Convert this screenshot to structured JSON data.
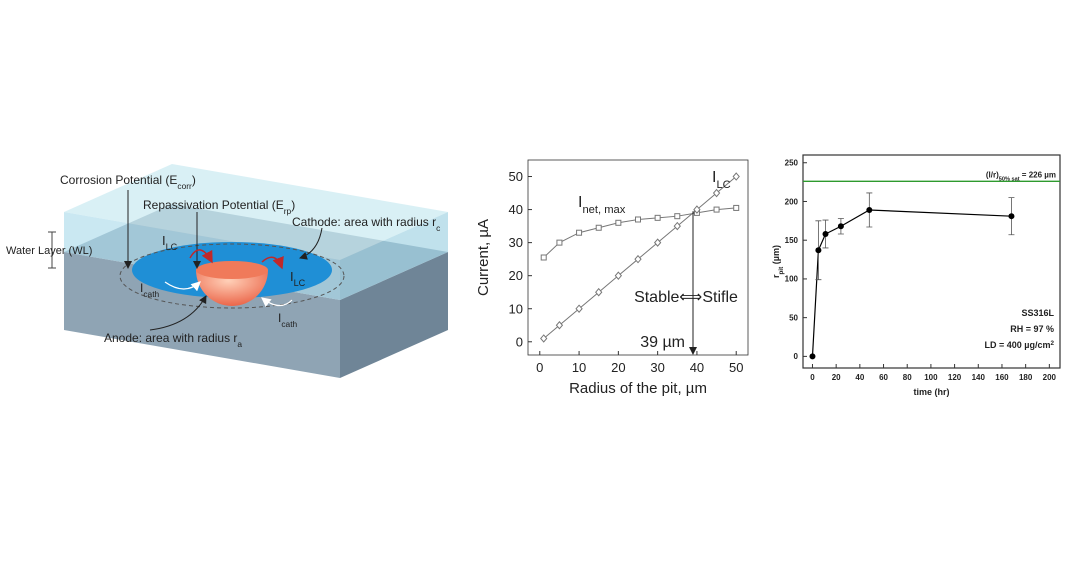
{
  "diagram": {
    "corrosion_potential": {
      "text": "Corrosion Potential (E",
      "sub": "corr",
      "end": ")"
    },
    "repassivation_potential": {
      "text": "Repassivation Potential (E",
      "sub": "rp",
      "end": ")"
    },
    "cathode": {
      "text": "Cathode: area with radius r",
      "sub": "c"
    },
    "water_layer": "Water Layer (WL)",
    "anode": {
      "text": "Anode: area with radius r",
      "sub": "a"
    },
    "current_lc": {
      "text": "I",
      "sub": "LC"
    },
    "current_cath": {
      "text": "I",
      "sub": "cath"
    }
  },
  "chart_data": [
    {
      "type": "line",
      "x_label": "Radius of the pit, µm",
      "y_label": "Current, µA",
      "x": [
        1,
        5,
        10,
        15,
        20,
        25,
        30,
        35,
        40,
        45,
        50
      ],
      "series": [
        {
          "name": "I",
          "name_sub": "net, max",
          "color": "#777777",
          "marker": "square",
          "values": [
            25.5,
            30,
            33,
            34.5,
            36,
            37,
            37.5,
            38,
            39,
            40,
            40.5
          ]
        },
        {
          "name": "I",
          "name_sub": "LC",
          "color": "#777777",
          "marker": "diamond",
          "values": [
            1,
            5,
            10,
            15,
            20,
            25,
            30,
            35,
            40,
            45,
            50
          ]
        }
      ],
      "xlim": [
        -3,
        53
      ],
      "ylim": [
        -4,
        55
      ],
      "xticks": [
        0,
        10,
        20,
        30,
        40,
        50
      ],
      "yticks": [
        0,
        10,
        20,
        30,
        40,
        50
      ],
      "annotation": "Stable⟺Stifle",
      "marker_x": 39,
      "marker_label": "39 µm"
    },
    {
      "type": "scatter",
      "x_label": "time (hr)",
      "y_label": {
        "text": "r",
        "sub": "pit",
        "end": " (µm)"
      },
      "x": [
        0,
        5,
        11,
        24,
        48,
        168
      ],
      "series": [
        {
          "color": "#000000",
          "values": [
            0,
            137,
            158,
            168,
            189,
            181
          ],
          "errors": [
            0,
            38,
            18,
            10,
            22,
            24
          ]
        }
      ],
      "xlim": [
        -8,
        209
      ],
      "ylim": [
        -15,
        260
      ],
      "xticks": [
        0,
        20,
        40,
        60,
        80,
        100,
        120,
        140,
        160,
        180,
        200
      ],
      "yticks": [
        0,
        50,
        100,
        150,
        200,
        250
      ],
      "reference_line": {
        "value": 226,
        "color": "#2e9a2e",
        "label": {
          "text": "(l/r)",
          "sub": "50% sat",
          "end": " = 226 µm"
        }
      },
      "annotations": [
        "SS316L",
        "RH = 97 %"
      ],
      "annotation_ld": {
        "text": "LD = 400 µg/cm",
        "sup": "2"
      }
    }
  ]
}
